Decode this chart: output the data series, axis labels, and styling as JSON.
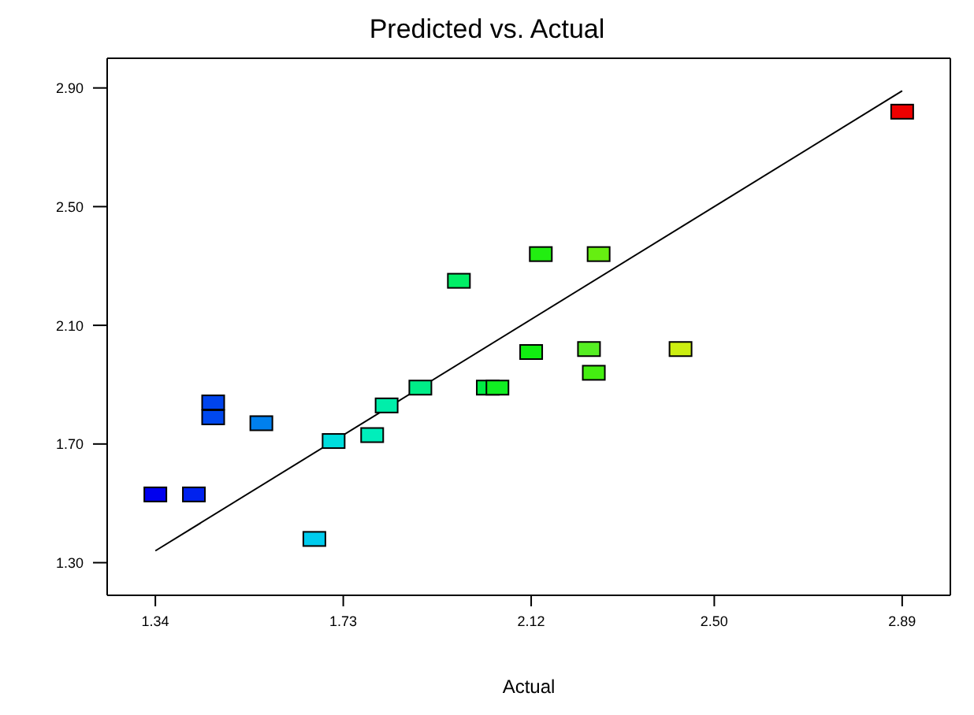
{
  "chart_data": {
    "type": "scatter",
    "title": "Predicted vs. Actual",
    "xlabel": "Actual",
    "legend": false,
    "xlim": [
      1.24,
      2.99
    ],
    "xticks": [
      1.34,
      1.73,
      2.12,
      {
        "value": 2.5,
        "label": "2.50"
      },
      2.89
    ],
    "ylim": [
      1.19,
      3.0
    ],
    "yticks": [
      {
        "value": 1.3,
        "label": "1.30"
      },
      {
        "value": 1.7,
        "label": "1.70"
      },
      {
        "value": 2.1,
        "label": "2.10"
      },
      {
        "value": 2.5,
        "label": "2.50"
      },
      {
        "value": 2.9,
        "label": "2.90"
      }
    ],
    "series": [
      {
        "marker": "square",
        "x": [
          1.34,
          1.42,
          1.46,
          1.46,
          1.56,
          1.67,
          1.71,
          1.79,
          1.82,
          1.89,
          1.97,
          2.03,
          2.05,
          2.12,
          2.14,
          2.24,
          2.25,
          2.26,
          2.43,
          2.89
        ],
        "values": [
          1.53,
          1.53,
          1.84,
          1.79,
          1.77,
          1.38,
          1.71,
          1.73,
          1.83,
          1.89,
          2.25,
          1.89,
          1.89,
          2.01,
          2.34,
          2.02,
          1.94,
          2.34,
          2.02,
          2.82
        ],
        "colors": [
          "#0000ee",
          "#0022ee",
          "#0044ee",
          "#0048ee",
          "#0080ee",
          "#00ccee",
          "#00dddd",
          "#00eebb",
          "#00eeaa",
          "#00ee88",
          "#00ee66",
          "#00ee44",
          "#11ee22",
          "#11ee11",
          "#22ee11",
          "#55ee22",
          "#44ee11",
          "#66ee11",
          "#ccee11",
          "#ee0000"
        ]
      },
      {
        "type": "line",
        "color": "#000000",
        "line_style": "solid",
        "x": [
          1.34,
          2.89
        ],
        "values": [
          1.34,
          2.89
        ]
      }
    ]
  }
}
